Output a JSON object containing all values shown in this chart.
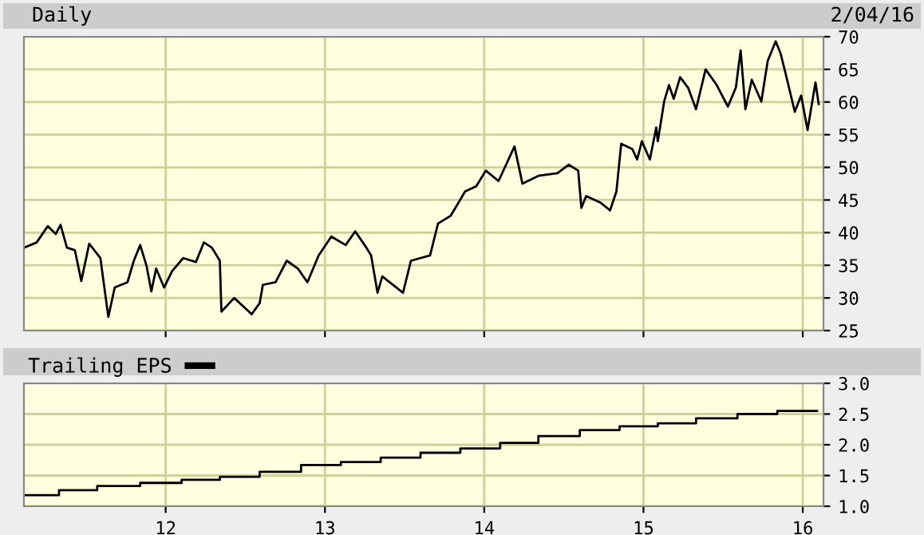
{
  "chart_data": [
    {
      "type": "line",
      "title": "Daily",
      "annotations": [
        "2/04/16"
      ],
      "xlim": [
        11.11,
        16.13
      ],
      "ylim": [
        25,
        70
      ],
      "yticks": [
        25,
        30,
        35,
        40,
        45,
        50,
        55,
        60,
        65,
        70
      ],
      "xticks": [
        12,
        13,
        14,
        15,
        16
      ],
      "tick_labels": "y",
      "grid": true,
      "legend": false,
      "series": [
        {
          "color": "#000000",
          "x": [
            11.11,
            11.19,
            11.26,
            11.31,
            11.34,
            11.38,
            11.43,
            11.47,
            11.52,
            11.59,
            11.64,
            11.68,
            11.76,
            11.8,
            11.84,
            11.88,
            11.91,
            11.94,
            11.99,
            12.04,
            12.11,
            12.19,
            12.24,
            12.29,
            12.34,
            12.35,
            12.43,
            12.54,
            12.59,
            12.61,
            12.69,
            12.76,
            12.83,
            12.89,
            12.96,
            13.04,
            13.13,
            13.19,
            13.26,
            13.29,
            13.33,
            13.36,
            13.49,
            13.54,
            13.66,
            13.71,
            13.79,
            13.88,
            13.95,
            14.01,
            14.09,
            14.19,
            14.24,
            14.34,
            14.46,
            14.53,
            14.59,
            14.61,
            14.64,
            14.73,
            14.79,
            14.83,
            14.86,
            14.93,
            14.96,
            14.99,
            15.04,
            15.08,
            15.09,
            15.13,
            15.16,
            15.19,
            15.23,
            15.28,
            15.33,
            15.39,
            15.46,
            15.53,
            15.58,
            15.61,
            15.64,
            15.68,
            15.74,
            15.78,
            15.83,
            15.86,
            15.89,
            15.95,
            15.99,
            16.03,
            16.08,
            16.1
          ],
          "values": [
            37.7,
            38.5,
            41.0,
            39.8,
            41.2,
            37.7,
            37.3,
            32.6,
            38.3,
            36.1,
            27.1,
            31.6,
            32.4,
            35.7,
            38.1,
            34.9,
            31.0,
            34.5,
            31.6,
            34.1,
            36.1,
            35.5,
            38.5,
            37.7,
            35.7,
            27.9,
            30.0,
            27.5,
            29.2,
            32.0,
            32.4,
            35.7,
            34.5,
            32.4,
            36.5,
            39.4,
            38.1,
            40.2,
            37.7,
            36.5,
            30.8,
            33.3,
            30.8,
            35.7,
            36.5,
            41.4,
            42.6,
            46.3,
            47.1,
            49.5,
            47.9,
            53.2,
            47.5,
            48.7,
            49.1,
            50.4,
            49.5,
            43.8,
            45.6,
            44.6,
            43.4,
            46.3,
            53.6,
            52.8,
            51.2,
            54.0,
            51.2,
            56.1,
            54.0,
            60.1,
            62.6,
            60.5,
            63.8,
            62.2,
            58.9,
            65.0,
            62.6,
            59.3,
            62.2,
            67.9,
            58.9,
            63.4,
            60.1,
            66.3,
            69.3,
            67.5,
            64.6,
            58.5,
            61.0,
            55.7,
            63.0,
            59.7
          ]
        }
      ]
    },
    {
      "type": "step",
      "xlim": [
        11.11,
        16.13
      ],
      "ylim": [
        1.0,
        3.0
      ],
      "yticks": [
        {
          "value": 1.0,
          "label": "1.0"
        },
        {
          "value": 1.5,
          "label": "1.5"
        },
        {
          "value": 2.0,
          "label": "2.0"
        },
        {
          "value": 2.5,
          "label": "2.5"
        },
        {
          "value": 3.0,
          "label": "3.0"
        }
      ],
      "xticks": [
        12,
        13,
        14,
        15,
        16
      ],
      "grid": true,
      "legend": "top left",
      "series": [
        {
          "name": "Trailing EPS",
          "color": "#000000",
          "x": [
            11.11,
            11.33,
            11.57,
            11.84,
            12.1,
            12.34,
            12.59,
            12.85,
            13.1,
            13.35,
            13.6,
            13.85,
            14.1,
            14.34,
            14.6,
            14.85,
            15.09,
            15.33,
            15.59,
            15.84,
            16.09
          ],
          "values": [
            1.18,
            1.26,
            1.33,
            1.38,
            1.43,
            1.48,
            1.56,
            1.67,
            1.72,
            1.79,
            1.87,
            1.94,
            2.03,
            2.14,
            2.24,
            2.3,
            2.35,
            2.43,
            2.5,
            2.55,
            2.55
          ]
        }
      ]
    }
  ]
}
